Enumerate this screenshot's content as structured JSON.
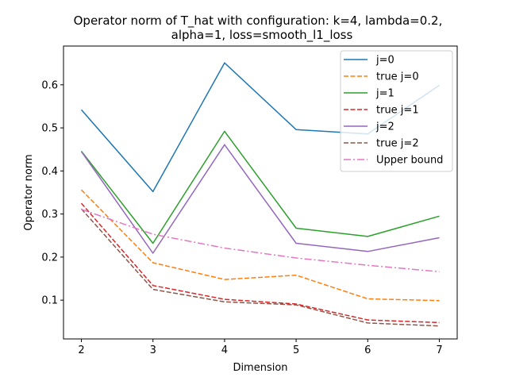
{
  "chart_data": {
    "type": "line",
    "title_line1": "Operator norm of T_hat with configuration: k=4, lambda=0.2,",
    "title_line2": "alpha=1, loss=smooth_l1_loss",
    "xlabel": "Dimension",
    "ylabel": "Operator norm",
    "x": [
      2,
      3,
      4,
      5,
      6,
      7
    ],
    "xlim": [
      1.75,
      7.25
    ],
    "ylim": [
      0.01,
      0.69
    ],
    "xticks": [
      "2",
      "3",
      "4",
      "5",
      "6",
      "7"
    ],
    "yticks": [
      "0.1",
      "0.2",
      "0.3",
      "0.4",
      "0.5",
      "0.6"
    ],
    "ytick_values": [
      0.1,
      0.2,
      0.3,
      0.4,
      0.5,
      0.6
    ],
    "grid": false,
    "legend_position": "top-right",
    "series": [
      {
        "name": "j=0",
        "color": "#1f77b4",
        "dash": "solid",
        "values": [
          0.542,
          0.352,
          0.651,
          0.496,
          0.486,
          0.599
        ]
      },
      {
        "name": "true j=0",
        "color": "#ff7f0e",
        "dash": "dashed",
        "values": [
          0.356,
          0.187,
          0.148,
          0.158,
          0.103,
          0.099
        ]
      },
      {
        "name": "j=1",
        "color": "#2ca02c",
        "dash": "solid",
        "values": [
          0.446,
          0.232,
          0.492,
          0.267,
          0.248,
          0.295
        ]
      },
      {
        "name": "true j=1",
        "color": "#d62728",
        "dash": "dashed",
        "values": [
          0.325,
          0.134,
          0.102,
          0.091,
          0.054,
          0.048
        ]
      },
      {
        "name": "j=2",
        "color": "#9467bd",
        "dash": "solid",
        "values": [
          0.445,
          0.209,
          0.461,
          0.232,
          0.213,
          0.245
        ]
      },
      {
        "name": "true j=2",
        "color": "#8c564b",
        "dash": "dashed",
        "values": [
          0.312,
          0.125,
          0.096,
          0.089,
          0.047,
          0.04
        ]
      },
      {
        "name": "Upper bound",
        "color": "#e377c2",
        "dash": "dashdot",
        "values": [
          0.311,
          0.253,
          0.221,
          0.198,
          0.181,
          0.166
        ]
      }
    ]
  }
}
